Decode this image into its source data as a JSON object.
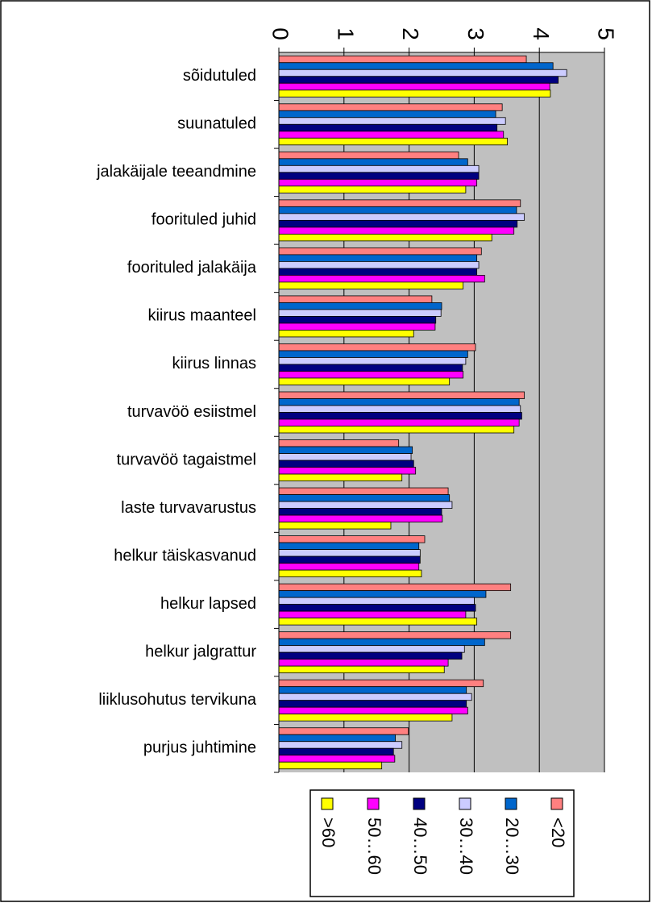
{
  "chart_data": {
    "type": "bar",
    "orientation": "horizontal",
    "categories": [
      "sõidutuled",
      "suunatuled",
      "jalakäijale teeandmine",
      "foorituled juhid",
      "foorituled jalakäija",
      "kiirus maanteel",
      "kiirus linnas",
      "turvavöö esiistmel",
      "turvavöö tagaistmel",
      "laste turvavarustus",
      "helkur täiskasvanud",
      "helkur lapsed",
      "helkur jalgrattur",
      "liiklusohutus tervikuna",
      "purjus juhtimine"
    ],
    "series": [
      {
        "name": "<20",
        "color": "#ff8080",
        "values": [
          3.8,
          3.43,
          2.76,
          3.71,
          3.11,
          2.35,
          3.02,
          3.77,
          1.84,
          2.6,
          2.24,
          3.56,
          3.56,
          3.14,
          1.99
        ]
      },
      {
        "name": "20…30",
        "color": "#0066cc",
        "values": [
          4.21,
          3.33,
          2.9,
          3.65,
          3.04,
          2.5,
          2.9,
          3.69,
          2.05,
          2.62,
          2.15,
          3.18,
          3.16,
          2.88,
          1.79
        ]
      },
      {
        "name": "30…40",
        "color": "#ccccff",
        "values": [
          4.42,
          3.48,
          3.07,
          3.77,
          3.07,
          2.49,
          2.87,
          3.71,
          2.03,
          2.66,
          2.17,
          3.0,
          2.85,
          2.96,
          1.89
        ]
      },
      {
        "name": "40…50",
        "color": "#000080",
        "values": [
          4.29,
          3.35,
          3.07,
          3.66,
          3.04,
          2.41,
          2.82,
          3.73,
          2.07,
          2.5,
          2.17,
          3.02,
          2.81,
          2.88,
          1.76
        ]
      },
      {
        "name": "50…60",
        "color": "#ff00ff",
        "values": [
          4.16,
          3.45,
          3.04,
          3.61,
          3.16,
          2.4,
          2.83,
          3.69,
          2.1,
          2.51,
          2.15,
          2.87,
          2.6,
          2.9,
          1.78
        ]
      },
      {
        "name": ">60",
        "color": "#ffff00",
        "values": [
          4.17,
          3.51,
          2.87,
          3.27,
          2.83,
          2.07,
          2.62,
          3.61,
          1.89,
          1.72,
          2.19,
          3.04,
          2.54,
          2.66,
          1.58
        ]
      }
    ],
    "xlim": [
      0,
      5
    ],
    "xticks": [
      0,
      1,
      2,
      3,
      4,
      5
    ],
    "grid": true,
    "legend": "bottom"
  }
}
